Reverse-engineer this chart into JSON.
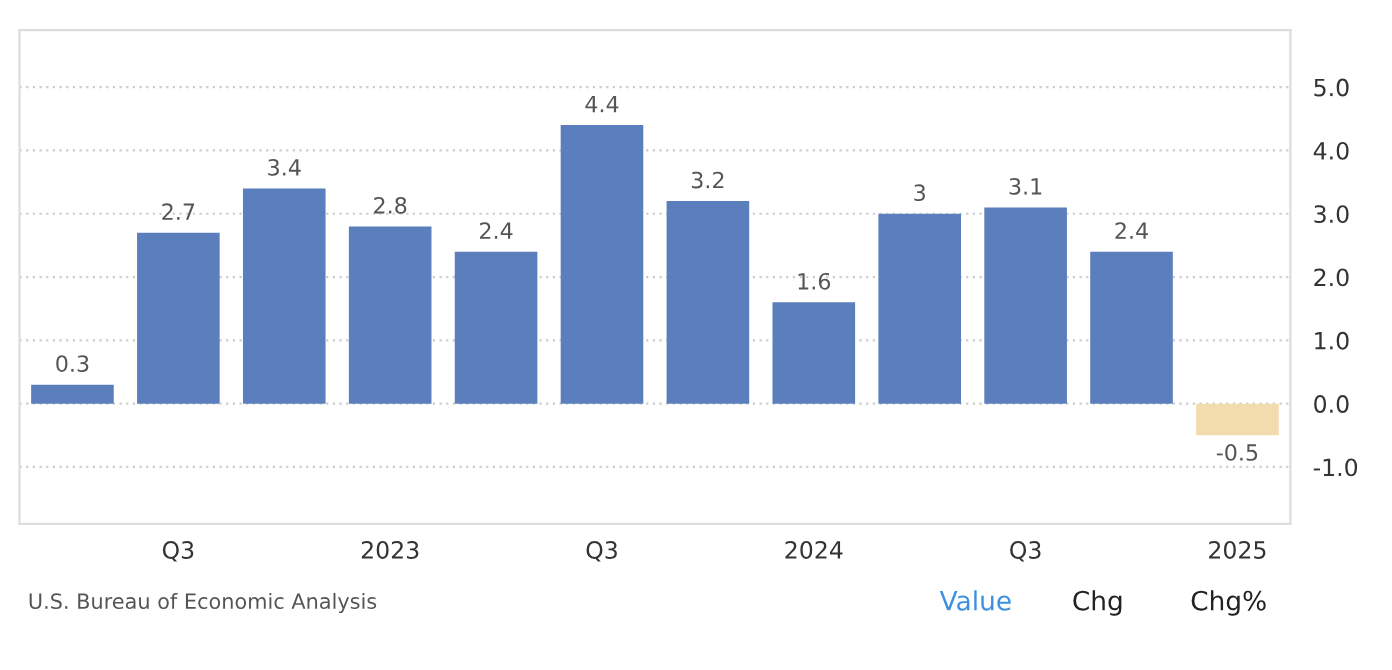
{
  "chart_data": {
    "type": "bar",
    "categories": [
      null,
      "Q3",
      null,
      "2023",
      null,
      "Q3",
      null,
      "2024",
      null,
      "Q3",
      null,
      "2025"
    ],
    "values": [
      0.3,
      2.7,
      3.4,
      2.8,
      2.4,
      4.4,
      3.2,
      1.6,
      3,
      3.1,
      2.4,
      -0.5
    ],
    "colors": [
      "#5a7fbc",
      "#5a7fbc",
      "#5a7fbc",
      "#5a7fbc",
      "#5a7fbc",
      "#5a7fbc",
      "#5a7fbc",
      "#5a7fbc",
      "#5a7fbc",
      "#5a7fbc",
      "#5a7fbc",
      "#f2dcae"
    ],
    "ylim": [
      -1.9,
      5.9
    ],
    "yticks": [
      {
        "value": 5,
        "label": "5.0"
      },
      {
        "value": 4,
        "label": "4.0"
      },
      {
        "value": 3,
        "label": "3.0"
      },
      {
        "value": 2,
        "label": "2.0"
      },
      {
        "value": 1,
        "label": "1.0"
      },
      {
        "value": 0,
        "label": "0.0"
      },
      {
        "value": -1,
        "label": "-1.0"
      }
    ],
    "grid": "y",
    "data_labels": true,
    "legend": false,
    "annotations": [
      "U.S. Bureau of Economic Analysis",
      "Value",
      "Chg",
      "Chg%"
    ]
  }
}
